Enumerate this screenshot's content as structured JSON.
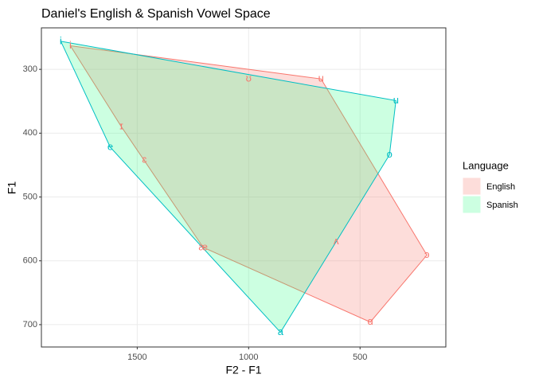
{
  "chart_data": {
    "type": "polygon-scatter",
    "title": "Daniel's English & Spanish Vowel Space",
    "x_label": "F2 - F1",
    "y_label": "F1",
    "xlim": [
      1930,
      115
    ],
    "ylim": [
      735,
      235
    ],
    "xticks": [
      1500,
      1000,
      500
    ],
    "yticks": [
      300,
      400,
      500,
      600,
      700
    ],
    "grid": true,
    "legend_title": "Language",
    "legend_position": "right",
    "fill_opacity": 0.25,
    "series": [
      {
        "name": "English",
        "color": "#F8766D",
        "fill": "#F8766D",
        "labels": [
          "i",
          "ɪ",
          "ɛ",
          "æ",
          "ɑ",
          "ɔ",
          "ʌ",
          "ʊ",
          "u"
        ],
        "x": [
          1800,
          1571,
          1468,
          1204,
          454,
          200,
          607,
          1000,
          675
        ],
        "y": [
          263,
          390,
          442,
          579,
          696,
          591,
          570,
          315,
          315
        ]
      },
      {
        "name": "Spanish",
        "color": "#00BFC4",
        "fill": "#33FF88",
        "labels": [
          "i",
          "e",
          "a",
          "o",
          "u"
        ],
        "x": [
          1843,
          1621,
          857,
          368,
          339
        ],
        "y": [
          256,
          422,
          712,
          434,
          349
        ]
      }
    ]
  }
}
